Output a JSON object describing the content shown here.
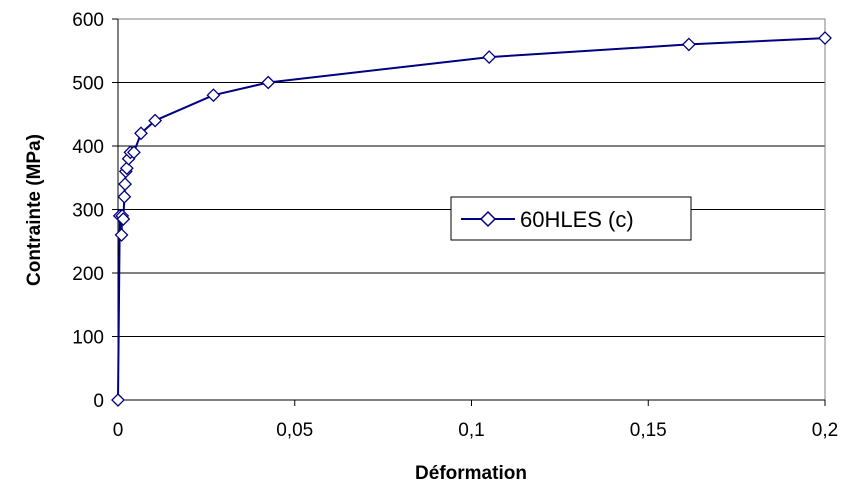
{
  "chart_data": {
    "type": "line",
    "title": "",
    "xlabel": "Déformation",
    "ylabel": "Contrainte (MPa)",
    "xlim": [
      0,
      0.2
    ],
    "ylim": [
      0,
      600
    ],
    "x_ticks": [
      0,
      0.05,
      0.1,
      0.15,
      0.2
    ],
    "x_tick_labels": [
      "0",
      "0,05",
      "0,1",
      "0,15",
      "0,2"
    ],
    "y_ticks": [
      0,
      100,
      200,
      300,
      400,
      500,
      600
    ],
    "y_tick_labels": [
      "0",
      "100",
      "200",
      "300",
      "400",
      "500",
      "600"
    ],
    "grid": "horizontal",
    "legend_position": "center-right",
    "series": [
      {
        "name": "60HLES (c)",
        "color": "#000080",
        "marker": "diamond",
        "x": [
          0,
          0.0005,
          0.001,
          0.0012,
          0.0015,
          0.0018,
          0.002,
          0.0022,
          0.0025,
          0.003,
          0.0035,
          0.0045,
          0.0065,
          0.0105,
          0.027,
          0.0425,
          0.105,
          0.1615,
          0.2
        ],
        "y": [
          0,
          290,
          260,
          290,
          285,
          320,
          340,
          360,
          365,
          380,
          390,
          390,
          420,
          440,
          480,
          500,
          540,
          560,
          570
        ]
      }
    ]
  }
}
